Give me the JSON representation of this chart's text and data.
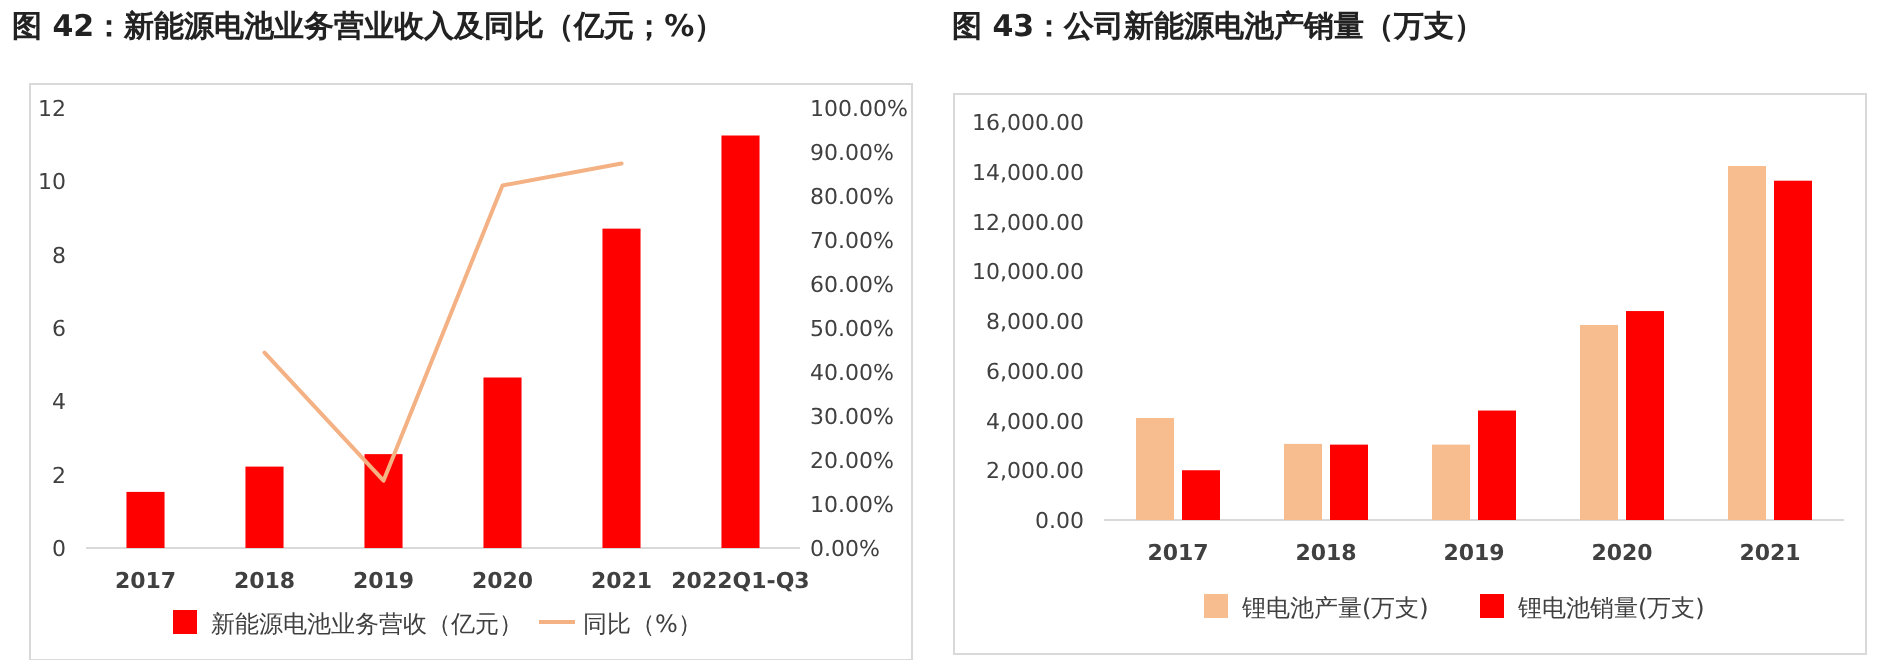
{
  "chart_data": [
    {
      "type": "bar",
      "title": "图 42：新能源电池业务营业收入及同比（亿元；%）",
      "categories": [
        "2017",
        "2018",
        "2019",
        "2020",
        "2021",
        "2022Q1-Q3"
      ],
      "series": [
        {
          "name": "新能源电池业务营收（亿元）",
          "color": "#ff0000",
          "values": [
            1.53,
            2.22,
            2.56,
            4.65,
            8.71,
            11.25
          ]
        },
        {
          "name": "同比（%）",
          "type": "line",
          "axis": "y2",
          "color": "#f4b183",
          "values": [
            null,
            44.4,
            15.3,
            82.4,
            87.4,
            null
          ]
        }
      ],
      "ylim": [
        0,
        12
      ],
      "yticks": [
        0,
        2,
        4,
        6,
        8,
        10,
        12
      ],
      "y2lim": [
        0,
        100
      ],
      "y2ticks": [
        {
          "value": 0,
          "label": "0.00%"
        },
        {
          "value": 10,
          "label": "10.00%"
        },
        {
          "value": 20,
          "label": "20.00%"
        },
        {
          "value": 30,
          "label": "30.00%"
        },
        {
          "value": 40,
          "label": "40.00%"
        },
        {
          "value": 50,
          "label": "50.00%"
        },
        {
          "value": 60,
          "label": "60.00%"
        },
        {
          "value": 70,
          "label": "70.00%"
        },
        {
          "value": 80,
          "label": "80.00%"
        },
        {
          "value": 90,
          "label": "90.00%"
        },
        {
          "value": 100,
          "label": "100.00%"
        }
      ],
      "legend": "bottom"
    },
    {
      "type": "bar",
      "title": "图 43：公司新能源电池产销量（万支）",
      "categories": [
        "2017",
        "2018",
        "2019",
        "2020",
        "2021"
      ],
      "series": [
        {
          "name": "锂电池产量(万支)",
          "color": "#f8bd8e",
          "values": [
            4100,
            3060,
            3030,
            7840,
            14230
          ]
        },
        {
          "name": "锂电池销量(万支)",
          "color": "#ff0000",
          "values": [
            2000,
            3030,
            4400,
            8400,
            13640
          ]
        }
      ],
      "ylim": [
        0,
        16000
      ],
      "yticks": [
        {
          "value": 0,
          "label": "0.00"
        },
        {
          "value": 2000,
          "label": "2,000.00"
        },
        {
          "value": 4000,
          "label": "4,000.00"
        },
        {
          "value": 6000,
          "label": "6,000.00"
        },
        {
          "value": 8000,
          "label": "8,000.00"
        },
        {
          "value": 10000,
          "label": "10,000.00"
        },
        {
          "value": 12000,
          "label": "12,000.00"
        },
        {
          "value": 14000,
          "label": "14,000.00"
        },
        {
          "value": 16000,
          "label": "16,000.00"
        }
      ],
      "legend": "bottom"
    }
  ]
}
